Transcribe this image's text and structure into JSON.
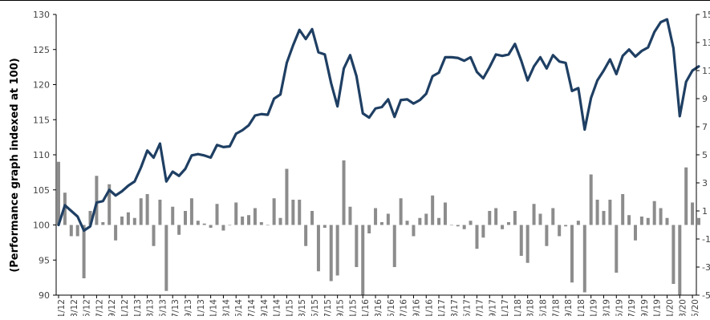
{
  "chart_data": {
    "type": "bar+line",
    "title": "",
    "ylabel": "(Performance graph indexed at 100)",
    "xlabel": "",
    "left_axis": {
      "min": 90,
      "max": 130,
      "ticks": [
        90,
        95,
        100,
        105,
        110,
        115,
        120,
        125,
        130
      ]
    },
    "right_axis": {
      "min": -5,
      "max": 15,
      "tick_values": [
        -5,
        -3,
        -1,
        1,
        3,
        5,
        7,
        9,
        11,
        13,
        15
      ],
      "tick_labels": [
        "-5",
        "-3",
        "-1",
        "1",
        "3",
        "5",
        "7",
        "9",
        "11",
        "13",
        "15"
      ]
    },
    "x_tick_labels": [
      "1/12",
      "3/12",
      "5/12",
      "7/12",
      "9/12",
      "11/12",
      "1/13",
      "3/13",
      "5/13",
      "7/13",
      "9/13",
      "11/13",
      "1/14",
      "3/14",
      "5/14",
      "7/14",
      "9/14",
      "11/14",
      "1/15",
      "3/15",
      "5/15",
      "7/15",
      "9/15",
      "11/15",
      "1/16",
      "3/16",
      "5/16",
      "7/16",
      "9/16",
      "11/16",
      "1/17",
      "3/17",
      "5/17",
      "7/17",
      "9/17",
      "11/17",
      "1/18",
      "3/18",
      "5/18",
      "7/18",
      "9/18",
      "11/18",
      "1/19",
      "3/19",
      "5/19",
      "7/19",
      "9/19",
      "11/19",
      "1/20",
      "3/20",
      "5/20"
    ],
    "series": [
      {
        "name": "",
        "kind": "line",
        "axis": "left",
        "color": "#1f3f63",
        "values": [
          100.0,
          102.8,
          102.0,
          101.2,
          99.2,
          99.8,
          103.2,
          103.4,
          105.0,
          104.2,
          104.8,
          105.6,
          106.2,
          108.2,
          110.6,
          109.6,
          111.6,
          106.2,
          107.6,
          107.0,
          108.0,
          109.9,
          110.1,
          109.9,
          109.6,
          111.4,
          111.1,
          111.2,
          113.0,
          113.5,
          114.2,
          115.6,
          115.8,
          115.7,
          118.0,
          118.6,
          123.1,
          125.6,
          127.8,
          126.5,
          127.9,
          124.6,
          124.3,
          120.2,
          116.9,
          122.3,
          124.2,
          121.2,
          115.9,
          115.3,
          116.6,
          116.8,
          117.9,
          115.4,
          117.8,
          117.9,
          117.3,
          117.8,
          118.7,
          121.2,
          121.7,
          123.9,
          123.9,
          123.8,
          123.4,
          123.9,
          121.8,
          120.9,
          122.5,
          124.3,
          124.1,
          124.3,
          125.8,
          123.4,
          120.6,
          122.6,
          123.9,
          122.3,
          124.2,
          123.3,
          123.1,
          119.1,
          119.5,
          113.6,
          118.1,
          120.6,
          122.0,
          123.6,
          121.5,
          124.1,
          125.0,
          124.0,
          124.8,
          125.3,
          127.5,
          128.9,
          129.3,
          125.2,
          115.5,
          120.4,
          122.0,
          122.6
        ]
      },
      {
        "name": "",
        "kind": "bar",
        "axis": "right",
        "color": "#8c8c8c",
        "values": [
          4.5,
          2.3,
          -0.8,
          -0.8,
          -3.8,
          1.0,
          3.5,
          0.2,
          2.9,
          -1.1,
          0.6,
          0.9,
          0.5,
          1.9,
          2.2,
          -1.5,
          1.8,
          -4.7,
          1.3,
          -0.7,
          1.0,
          1.9,
          0.3,
          0.1,
          -0.2,
          1.5,
          -0.4,
          0.0,
          1.6,
          0.6,
          0.7,
          1.2,
          0.2,
          0.0,
          1.9,
          0.5,
          4.0,
          1.8,
          1.8,
          -1.5,
          1.0,
          -3.3,
          -0.2,
          -4.0,
          -3.6,
          4.6,
          1.3,
          -3.0,
          -5.0,
          -0.6,
          1.2,
          0.2,
          0.8,
          -3.0,
          1.9,
          0.3,
          -0.8,
          0.5,
          0.8,
          2.1,
          0.5,
          1.6,
          0.0,
          -0.1,
          -0.3,
          0.3,
          -1.7,
          -0.9,
          1.0,
          1.2,
          -0.3,
          0.2,
          1.0,
          -2.2,
          -2.7,
          1.5,
          0.8,
          -1.5,
          1.2,
          -0.8,
          -0.1,
          -4.1,
          0.3,
          -4.8,
          3.6,
          1.8,
          1.0,
          1.8,
          -3.4,
          2.2,
          0.7,
          -1.1,
          0.6,
          0.5,
          1.7,
          1.2,
          0.5,
          -4.2,
          -5.0,
          4.1,
          1.6,
          0.5
        ]
      }
    ],
    "grid": false,
    "legend": "none"
  }
}
